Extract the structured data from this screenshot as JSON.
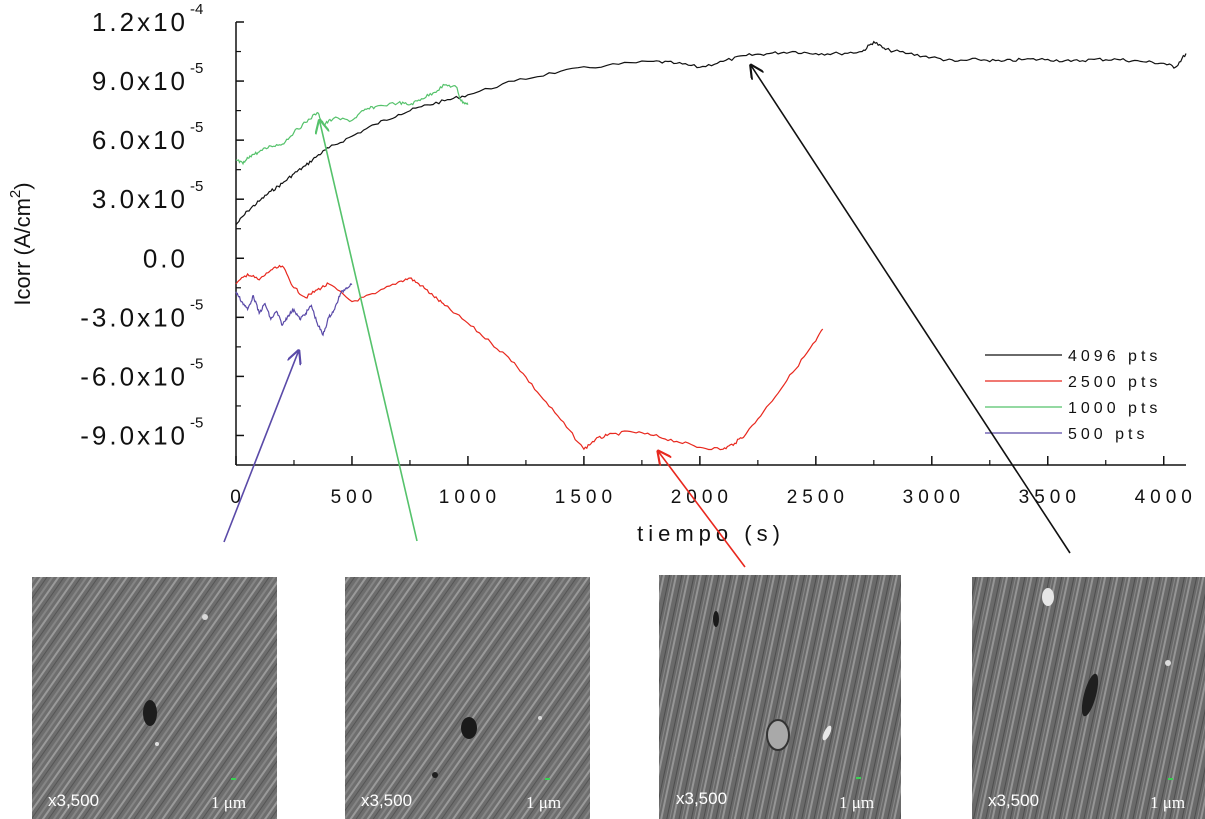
{
  "chart_data": {
    "type": "line",
    "title": "",
    "xlabel": "tiempo (s)",
    "ylabel": "Icorr (A/cm",
    "ylabel_sup": "2",
    "ylabel_close": ")",
    "xlim": [
      0,
      4096
    ],
    "ylim": [
      -0.000105,
      0.00012
    ],
    "x_ticks": [
      0,
      500,
      1000,
      1500,
      2000,
      2500,
      3000,
      3500,
      4000
    ],
    "x_tick_labels": [
      "0",
      "500",
      "1000",
      "1500",
      "2000",
      "2500",
      "3000",
      "3500",
      "4000"
    ],
    "y_ticks": [
      {
        "value": 0.00012,
        "mantissa": "1.2x10",
        "exp": "-4"
      },
      {
        "value": 9e-05,
        "mantissa": "9.0x10",
        "exp": "-5"
      },
      {
        "value": 6e-05,
        "mantissa": "6.0x10",
        "exp": "-5"
      },
      {
        "value": 3e-05,
        "mantissa": "3.0x10",
        "exp": "-5"
      },
      {
        "value": 0.0,
        "mantissa": "0.0",
        "exp": ""
      },
      {
        "value": -3e-05,
        "mantissa": "-3.0x10",
        "exp": "-5"
      },
      {
        "value": -6e-05,
        "mantissa": "-6.0x10",
        "exp": "-5"
      },
      {
        "value": -9e-05,
        "mantissa": "-9.0x10",
        "exp": "-5"
      }
    ],
    "legend_position": "right",
    "series": [
      {
        "name": "4096 pts",
        "color": "#111111",
        "x": [
          0,
          50,
          100,
          150,
          200,
          250,
          300,
          350,
          400,
          500,
          600,
          700,
          800,
          900,
          1000,
          1200,
          1400,
          1600,
          1800,
          1900,
          2000,
          2100,
          2200,
          2300,
          2400,
          2500,
          2600,
          2700,
          2750,
          2800,
          2900,
          3000,
          3100,
          3200,
          3300,
          3400,
          3500,
          3600,
          3700,
          3800,
          3900,
          4000,
          4050,
          4096
        ],
        "y": [
          1.7e-05,
          2.4e-05,
          2.9e-05,
          3.4e-05,
          3.8e-05,
          4.3e-05,
          4.7e-05,
          5.2e-05,
          5.6e-05,
          6.2e-05,
          6.8e-05,
          7.3e-05,
          7.7e-05,
          8e-05,
          8.3e-05,
          9e-05,
          9.5e-05,
          9.8e-05,
          0.0001,
          9.9e-05,
          9.7e-05,
          0.0001,
          0.000103,
          0.000104,
          0.000105,
          0.000104,
          0.000104,
          0.000105,
          0.00011,
          0.000106,
          0.000104,
          0.000102,
          0.0001,
          0.000101,
          0.0001,
          0.000101,
          0.000101,
          0.0001,
          0.000101,
          0.000101,
          0.0001,
          9.9e-05,
          9.7e-05,
          0.000104
        ]
      },
      {
        "name": "2500 pts",
        "color": "#e8281e",
        "x": [
          0,
          50,
          100,
          150,
          200,
          250,
          300,
          350,
          400,
          500,
          600,
          700,
          750,
          800,
          850,
          900,
          1000,
          1100,
          1200,
          1300,
          1400,
          1500,
          1550,
          1600,
          1700,
          1800,
          1900,
          2000,
          2100,
          2150,
          2200,
          2300,
          2400,
          2500,
          2530
        ],
        "y": [
          -1.3e-05,
          -8e-06,
          -1.1e-05,
          -6e-06,
          -4e-06,
          -1.5e-05,
          -2e-05,
          -1.6e-05,
          -1.3e-05,
          -2.2e-05,
          -1.8e-05,
          -1.2e-05,
          -1e-05,
          -1.4e-05,
          -1.9e-05,
          -2.4e-05,
          -3.3e-05,
          -4.3e-05,
          -5.3e-05,
          -6.8e-05,
          -8.2e-05,
          -9.7e-05,
          -9.2e-05,
          -9e-05,
          -8.8e-05,
          -9e-05,
          -9.3e-05,
          -9.6e-05,
          -9.7e-05,
          -9.4e-05,
          -8.9e-05,
          -7.4e-05,
          -5.8e-05,
          -4.2e-05,
          -3.6e-05
        ]
      },
      {
        "name": "1000 pts",
        "color": "#55c26b",
        "x": [
          0,
          30,
          60,
          100,
          150,
          200,
          250,
          300,
          350,
          380,
          420,
          500,
          550,
          600,
          700,
          750,
          800,
          850,
          900,
          950,
          970,
          1000
        ],
        "y": [
          5e-05,
          4.8e-05,
          5.2e-05,
          5.4e-05,
          5.7e-05,
          5.8e-05,
          6.4e-05,
          6.9e-05,
          7.4e-05,
          6.8e-05,
          7.1e-05,
          7e-05,
          7.5e-05,
          7.7e-05,
          7.9e-05,
          7.8e-05,
          8.1e-05,
          8.4e-05,
          8.8e-05,
          8.7e-05,
          8e-05,
          7.8e-05
        ]
      },
      {
        "name": "500 pts",
        "color": "#5a4aa8",
        "x": [
          0,
          25,
          50,
          75,
          100,
          125,
          150,
          175,
          200,
          225,
          250,
          275,
          300,
          325,
          350,
          375,
          400,
          425,
          450,
          475,
          500
        ],
        "y": [
          -1.7e-05,
          -2.2e-05,
          -2.6e-05,
          -1.9e-05,
          -2.8e-05,
          -2.3e-05,
          -3.1e-05,
          -2.7e-05,
          -3.4e-05,
          -2.9e-05,
          -2.6e-05,
          -3.1e-05,
          -2.8e-05,
          -2.4e-05,
          -3.3e-05,
          -3.9e-05,
          -3e-05,
          -2.6e-05,
          -1.8e-05,
          -1.5e-05,
          -1.3e-05
        ]
      }
    ],
    "annotations": [
      {
        "series": "500 pts",
        "target_x": 270,
        "target_y": -4.7e-05
      },
      {
        "series": "1000 pts",
        "target_x": 360,
        "target_y": 7e-05
      },
      {
        "series": "2500 pts",
        "target_x": 1820,
        "target_y": -9.8e-05
      },
      {
        "series": "4096 pts",
        "target_x": 2220,
        "target_y": 9.8e-05
      }
    ]
  },
  "micrographs": [
    {
      "magnification": "x3,500",
      "scale": "1 μm",
      "series": "500 pts"
    },
    {
      "magnification": "x3,500",
      "scale": "1 μm",
      "series": "1000 pts"
    },
    {
      "magnification": "x3,500",
      "scale": "1 μm",
      "series": "2500 pts"
    },
    {
      "magnification": "x3,500",
      "scale": "1 μm",
      "series": "4096 pts"
    }
  ]
}
